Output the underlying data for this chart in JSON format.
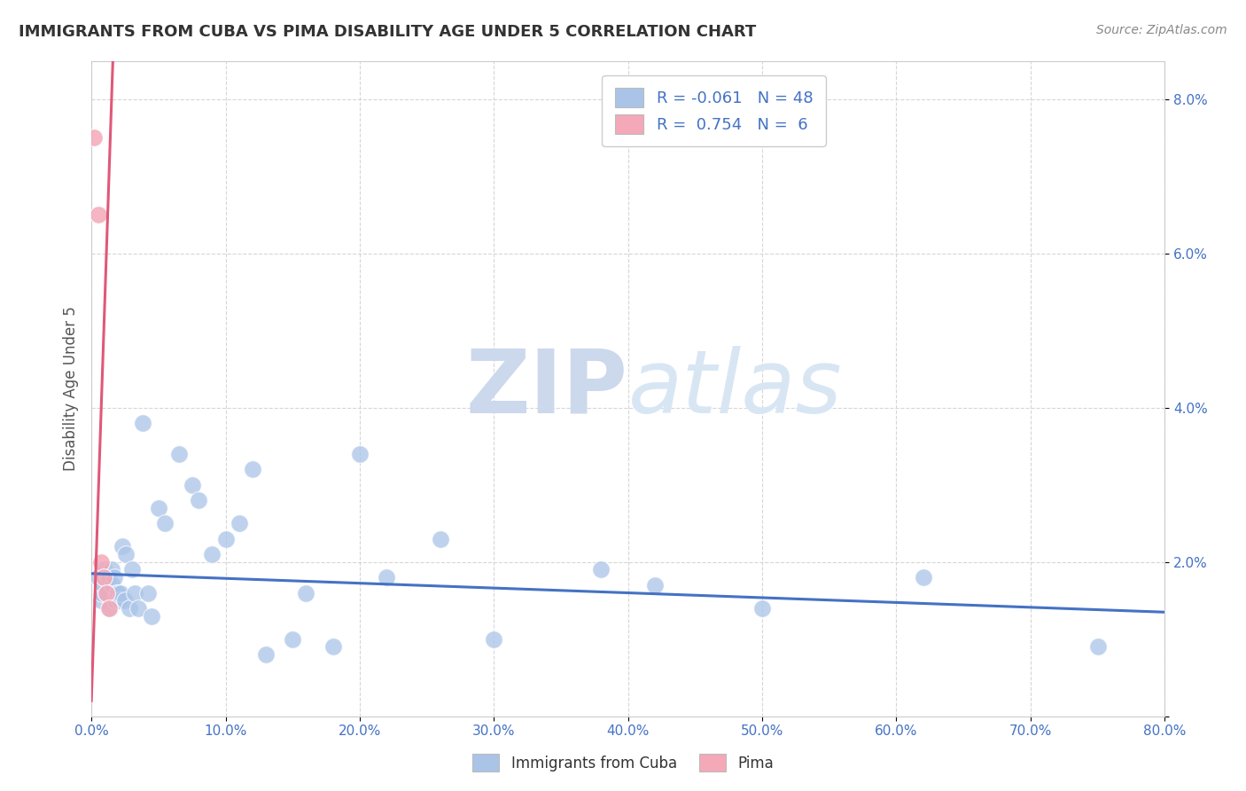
{
  "title": "IMMIGRANTS FROM CUBA VS PIMA DISABILITY AGE UNDER 5 CORRELATION CHART",
  "source": "Source: ZipAtlas.com",
  "xlabel": "",
  "ylabel": "Disability Age Under 5",
  "watermark_zip": "ZIP",
  "watermark_atlas": "atlas",
  "xlim": [
    0.0,
    0.8
  ],
  "ylim": [
    0.0,
    0.085
  ],
  "xticks": [
    0.0,
    0.1,
    0.2,
    0.3,
    0.4,
    0.5,
    0.6,
    0.7,
    0.8
  ],
  "xticklabels": [
    "0.0%",
    "10.0%",
    "20.0%",
    "30.0%",
    "40.0%",
    "50.0%",
    "60.0%",
    "70.0%",
    "80.0%"
  ],
  "yticks": [
    0.0,
    0.02,
    0.04,
    0.06,
    0.08
  ],
  "yticklabels": [
    "",
    "2.0%",
    "4.0%",
    "6.0%",
    "8.0%"
  ],
  "blue_R": -0.061,
  "blue_N": 48,
  "pink_R": 0.754,
  "pink_N": 6,
  "blue_scatter_x": [
    0.005,
    0.007,
    0.008,
    0.009,
    0.01,
    0.011,
    0.013,
    0.014,
    0.015,
    0.016,
    0.017,
    0.018,
    0.019,
    0.02,
    0.021,
    0.022,
    0.023,
    0.025,
    0.026,
    0.028,
    0.03,
    0.032,
    0.035,
    0.038,
    0.042,
    0.045,
    0.05,
    0.055,
    0.065,
    0.075,
    0.08,
    0.09,
    0.1,
    0.11,
    0.12,
    0.13,
    0.15,
    0.16,
    0.18,
    0.2,
    0.22,
    0.26,
    0.3,
    0.38,
    0.42,
    0.5,
    0.62,
    0.75
  ],
  "blue_scatter_y": [
    0.018,
    0.015,
    0.016,
    0.017,
    0.019,
    0.016,
    0.018,
    0.014,
    0.019,
    0.017,
    0.018,
    0.015,
    0.016,
    0.016,
    0.015,
    0.016,
    0.022,
    0.015,
    0.021,
    0.014,
    0.019,
    0.016,
    0.014,
    0.038,
    0.016,
    0.013,
    0.027,
    0.025,
    0.034,
    0.03,
    0.028,
    0.021,
    0.023,
    0.025,
    0.032,
    0.008,
    0.01,
    0.016,
    0.009,
    0.034,
    0.018,
    0.023,
    0.01,
    0.019,
    0.017,
    0.014,
    0.018,
    0.009
  ],
  "pink_scatter_x": [
    0.002,
    0.005,
    0.007,
    0.009,
    0.011,
    0.013
  ],
  "pink_scatter_y": [
    0.075,
    0.065,
    0.02,
    0.018,
    0.016,
    0.014
  ],
  "blue_line_x": [
    0.0,
    0.8
  ],
  "blue_line_y": [
    0.0185,
    0.0135
  ],
  "pink_line_x": [
    0.0,
    0.016
  ],
  "pink_line_y": [
    0.002,
    0.085
  ],
  "legend_blue_label": "Immigrants from Cuba",
  "legend_pink_label": "Pima",
  "background_color": "#ffffff",
  "plot_bg_color": "#ffffff",
  "grid_color": "#cccccc",
  "blue_scatter_color": "#aac4e8",
  "blue_line_color": "#4472c4",
  "pink_scatter_color": "#f4a8b8",
  "pink_line_color": "#e05878",
  "title_color": "#333333",
  "axis_label_color": "#4472c4",
  "tick_color": "#555555",
  "legend_R_color": "#4472c4",
  "watermark_color": "#ccd8ec"
}
